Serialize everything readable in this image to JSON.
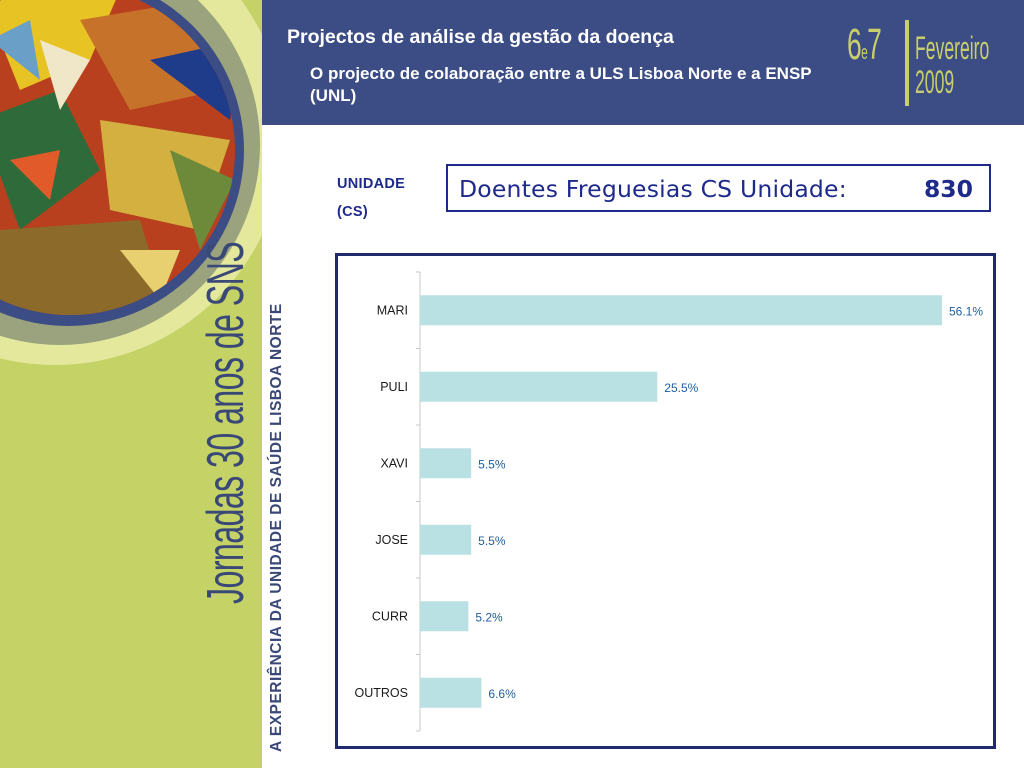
{
  "header": {
    "title": "Projectos de análise da gestão da doença",
    "subtitle": "O projecto de colaboração entre a ULS Lisboa Norte e a ENSP (UNL)"
  },
  "event": {
    "title": "Jornadas 30 anos de SNS",
    "subtitle": "A EXPERIÊNCIA DA UNIDADE DE SAÚDE LISBOA NORTE",
    "date": {
      "days_first": "6",
      "days_joiner": "e",
      "days_second": "7",
      "month": "Fevereiro",
      "year": "2009"
    }
  },
  "unit": {
    "label_line1": "UNIDADE",
    "label_line2": "(CS)"
  },
  "summary": {
    "label": "Doentes Freguesias CS Unidade:",
    "value": "830"
  },
  "colors": {
    "header_bg": "#3c4c84",
    "left_band": "#c4d266",
    "accent_text": "#1e2a8a",
    "bar_fill": "#b9e0e3",
    "value_label": "#1f5fa0"
  },
  "chart_data": {
    "type": "bar",
    "orientation": "horizontal",
    "categories": [
      "MARI",
      "PULI",
      "XAVI",
      "JOSE",
      "CURR",
      "OUTROS"
    ],
    "values": [
      56.1,
      25.5,
      5.5,
      5.5,
      5.2,
      6.6
    ],
    "value_labels": [
      "56.1%",
      "25.5%",
      "5.5%",
      "5.5%",
      "5.2%",
      "6.6%"
    ],
    "xlim": [
      0,
      56.1
    ],
    "grid": false,
    "legend": "none"
  }
}
